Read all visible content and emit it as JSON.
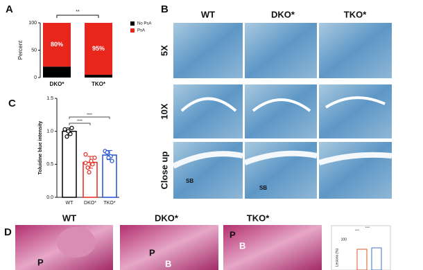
{
  "panels": {
    "a": "A",
    "b": "B",
    "c": "C",
    "d": "D"
  },
  "chart_data": [
    {
      "type": "stacked-bar",
      "y_label": "Percent",
      "categories": [
        "DKO*",
        "TKO*"
      ],
      "series": [
        {
          "name": "No PsA",
          "color": "#000000",
          "values": [
            20,
            5
          ]
        },
        {
          "name": "PsA",
          "color": "#e8261c",
          "values": [
            80,
            95
          ],
          "value_labels": [
            "80%",
            "95%"
          ]
        }
      ],
      "ylim": [
        0,
        100
      ],
      "yticks": [
        0,
        50,
        100
      ],
      "significance": "**"
    },
    {
      "type": "bar-dot",
      "y_label": "Toluidine blue intensity",
      "categories": [
        "WT",
        "DKO*",
        "TKO*"
      ],
      "colors": [
        "#000000",
        "#e8261c",
        "#1f4fd6"
      ],
      "values": [
        1.0,
        0.53,
        0.64
      ],
      "errors": [
        0.05,
        0.09,
        0.07
      ],
      "points": [
        [
          1.03,
          0.96,
          1.05,
          0.92,
          1.0
        ],
        [
          0.65,
          0.55,
          0.5,
          0.45,
          0.38,
          0.6,
          0.52
        ],
        [
          0.7,
          0.62,
          0.55,
          0.68,
          0.6
        ]
      ],
      "ylim": [
        0,
        1.5
      ],
      "yticks": [
        {
          "value": 0,
          "label": "0.0"
        },
        {
          "value": 0.5,
          "label": "0.5"
        },
        {
          "value": 1,
          "label": "1.0"
        },
        {
          "value": 1.5,
          "label": "1.5"
        }
      ],
      "significance": [
        "****",
        "****"
      ]
    }
  ],
  "histology": {
    "columns": [
      "WT",
      "DKO*",
      "TKO*"
    ],
    "rows": [
      "5X",
      "10X",
      "Close up"
    ],
    "annotations": [
      "SB",
      "SB"
    ]
  },
  "staining": {
    "columns": [
      "WT",
      "DKO*",
      "TKO*"
    ],
    "annotations": [
      "P",
      "P",
      "B",
      "P",
      "B"
    ]
  },
  "inset": {
    "ytick": "100",
    "y_label": "Lesions (%)",
    "significance": [
      "****",
      "****"
    ]
  }
}
